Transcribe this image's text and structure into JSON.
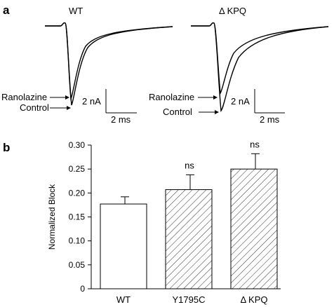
{
  "figure": {
    "panel_a": {
      "letter": "a",
      "left_trace_title": "WT",
      "right_trace_title": "Δ KPQ",
      "labels": {
        "ranolazine": "Ranolazine",
        "control": "Control"
      },
      "scale_bar": {
        "current": "2 nA",
        "time": "2 ms"
      }
    },
    "panel_b": {
      "letter": "b"
    }
  },
  "chart_data": {
    "type": "bar",
    "categories": [
      "WT",
      "Y1795C",
      "Δ KPQ"
    ],
    "values": [
      0.177,
      0.207,
      0.25
    ],
    "errors": [
      0.015,
      0.031,
      0.032
    ],
    "annotations": [
      "",
      "ns",
      "ns"
    ],
    "patterns": [
      "none",
      "hatched",
      "hatched"
    ],
    "ylabel": "Normalized Block",
    "xlabel": "",
    "ylim": [
      0,
      0.3
    ],
    "yticks": [
      0,
      0.05,
      0.1,
      0.15,
      0.2,
      0.25,
      0.3
    ],
    "ytick_labels": [
      "0",
      "0.05",
      "0.10",
      "0.15",
      "0.20",
      "0.25",
      "0.30"
    ],
    "grid": false,
    "colors": {
      "bar_fill": "#ffffff",
      "stroke": "#000000"
    }
  }
}
